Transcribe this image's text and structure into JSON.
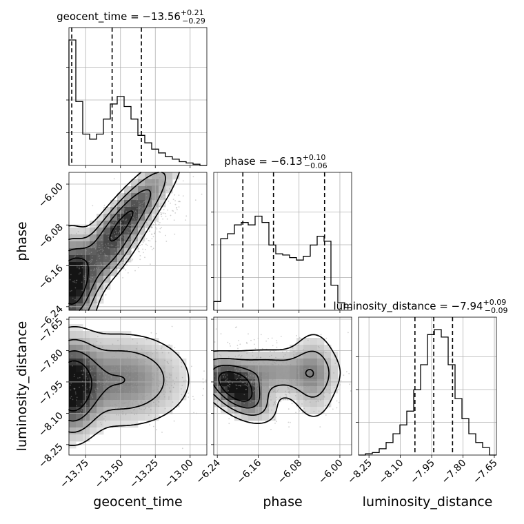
{
  "chart_data": {
    "type": "corner",
    "parameters": [
      "geocent_time",
      "phase",
      "luminosity_distance"
    ],
    "axis_labels": [
      "geocent_time",
      "phase",
      "luminosity_distance"
    ],
    "ranges": [
      [
        -13.87,
        -12.88
      ],
      [
        -6.247,
        -5.977
      ],
      [
        -8.3,
        -7.64
      ]
    ],
    "ticks": [
      [
        "−13.75",
        "−13.50",
        "−13.25",
        "−13.00"
      ],
      [
        "−6.24",
        "−6.16",
        "−6.08",
        "−6.00"
      ],
      [
        "−8.25",
        "−8.10",
        "−7.95",
        "−7.80",
        "−7.65"
      ]
    ],
    "tick_values": [
      [
        -13.75,
        -13.5,
        -13.25,
        -13.0
      ],
      [
        -6.24,
        -6.16,
        -6.08,
        -6.0
      ],
      [
        -8.25,
        -8.1,
        -7.95,
        -7.8,
        -7.65
      ]
    ],
    "titles": [
      {
        "text": "geocent_time = −13.56",
        "sup": "+0.21",
        "sub": "−0.29"
      },
      {
        "text": "phase = −6.13",
        "sup": "+0.10",
        "sub": "−0.06"
      },
      {
        "text": "luminosity_distance = −7.94",
        "sup": "+0.09",
        "sub": "−0.09"
      }
    ],
    "quantiles": [
      [
        -13.85,
        -13.56,
        -13.35
      ],
      [
        -6.19,
        -6.13,
        -6.03
      ],
      [
        -8.03,
        -7.94,
        -7.85
      ]
    ],
    "histograms": [
      [
        1.0,
        0.51,
        0.25,
        0.21,
        0.25,
        0.37,
        0.49,
        0.55,
        0.47,
        0.37,
        0.24,
        0.18,
        0.13,
        0.1,
        0.07,
        0.05,
        0.03,
        0.02,
        0.01,
        0.0
      ],
      [
        0.07,
        0.57,
        0.61,
        0.68,
        0.7,
        0.68,
        0.75,
        0.7,
        0.52,
        0.45,
        0.44,
        0.42,
        0.4,
        0.43,
        0.52,
        0.59,
        0.55,
        0.2,
        0.06,
        0.02
      ],
      [
        0.0,
        0.01,
        0.02,
        0.05,
        0.1,
        0.17,
        0.24,
        0.35,
        0.52,
        0.72,
        0.96,
        1.0,
        0.94,
        0.72,
        0.45,
        0.29,
        0.17,
        0.1,
        0.06,
        0.0
      ]
    ],
    "grid": true
  }
}
